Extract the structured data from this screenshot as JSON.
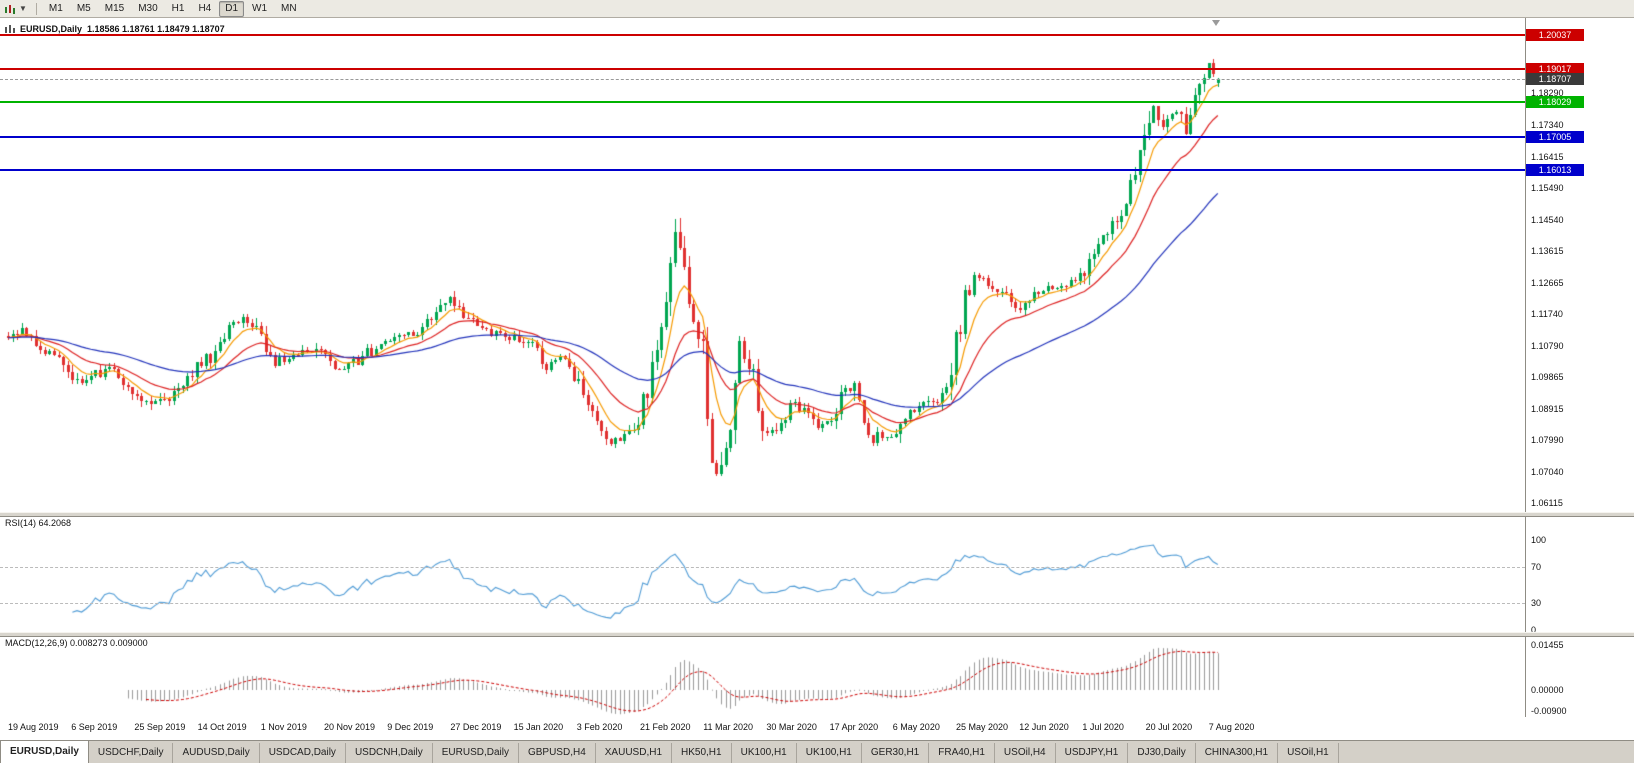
{
  "toolbar": {
    "timeframes": [
      "M1",
      "M5",
      "M15",
      "M30",
      "H1",
      "H4",
      "D1",
      "W1",
      "MN"
    ],
    "active_timeframe": "D1"
  },
  "chart": {
    "title": "EURUSD,Daily",
    "ohlc_text": "1.18586 1.18761 1.18479 1.18707",
    "open": "1.18586",
    "high": "1.18761",
    "low": "1.18479",
    "close": "1.18707",
    "price_axis_labels": [
      "1.18290",
      "1.17340",
      "1.16415",
      "1.15490",
      "1.14540",
      "1.13615",
      "1.12665",
      "1.11740",
      "1.10790",
      "1.09865",
      "1.08915",
      "1.07990",
      "1.07040",
      "1.06115"
    ],
    "levels": [
      {
        "price": "1.20037",
        "color": "#cc0000"
      },
      {
        "price": "1.19017",
        "color": "#cc0000"
      },
      {
        "price": "1.18029",
        "color": "#00b300"
      },
      {
        "price": "1.17005",
        "color": "#0000cc"
      },
      {
        "price": "1.16013",
        "color": "#0000cc"
      }
    ],
    "current_price": {
      "label": "1.18707",
      "box_color": "#3a3a3a",
      "line_color": "#999999"
    },
    "dates": [
      "19 Aug 2019",
      "6 Sep 2019",
      "25 Sep 2019",
      "14 Oct 2019",
      "1 Nov 2019",
      "20 Nov 2019",
      "9 Dec 2019",
      "27 Dec 2019",
      "15 Jan 2020",
      "3 Feb 2020",
      "21 Feb 2020",
      "11 Mar 2020",
      "30 Mar 2020",
      "17 Apr 2020",
      "6 May 2020",
      "25 May 2020",
      "12 Jun 2020",
      "1 Jul 2020",
      "20 Jul 2020",
      "7 Aug 2020"
    ]
  },
  "rsi": {
    "header": "RSI(14) 64.2068",
    "period": 14,
    "value": "64.2068",
    "axis_labels": [
      "100",
      "70",
      "30",
      "0"
    ],
    "dashed_levels": [
      70,
      30
    ],
    "line_color": "#4f9bd5"
  },
  "macd": {
    "header": "MACD(12,26,9) 0.008273 0.009000",
    "value": "0.008273",
    "signal_value": "0.009000",
    "axis_labels": [
      "0.01455",
      "0.00000",
      "-0.00900"
    ],
    "histogram_color": "#9a9a9a",
    "signal_color": "#cc0000"
  },
  "tabs": {
    "items": [
      "EURUSD,Daily",
      "USDCHF,Daily",
      "AUDUSD,Daily",
      "USDCAD,Daily",
      "USDCNH,Daily",
      "EURUSD,Daily",
      "GBPUSD,H4",
      "XAUUSD,H1",
      "HK50,H1",
      "UK100,H1",
      "UK100,H1",
      "GER30,H1",
      "FRA40,H1",
      "USOil,H4",
      "USDJPY,H1",
      "DJ30,Daily",
      "CHINA300,H1",
      "USOil,H1"
    ],
    "active_index": 0
  },
  "chart_data": {
    "type": "candlestick",
    "symbol": "EURUSD",
    "timeframe": "Daily",
    "bars": 264,
    "price_range": {
      "top": 1.2053,
      "bottom": 1.0586
    },
    "up_color": "#00a651",
    "down_color": "#e03030",
    "moving_averages": [
      {
        "name": "fast",
        "period": 7,
        "color": "#f59a00"
      },
      {
        "name": "medium",
        "period": 18,
        "color": "#dd2222"
      },
      {
        "name": "slow",
        "period": 50,
        "color": "#2233bb"
      }
    ],
    "anchors": [
      [
        0,
        1.1095
      ],
      [
        4,
        1.1125
      ],
      [
        8,
        1.106
      ],
      [
        12,
        1.1035
      ],
      [
        16,
        1.0955
      ],
      [
        19,
        1.0995
      ],
      [
        23,
        1.101
      ],
      [
        27,
        1.095
      ],
      [
        31,
        1.089
      ],
      [
        35,
        1.0935
      ],
      [
        39,
        1.099
      ],
      [
        44,
        1.105
      ],
      [
        48,
        1.1135
      ],
      [
        53,
        1.116
      ],
      [
        58,
        1.103
      ],
      [
        63,
        1.1055
      ],
      [
        67,
        1.1075
      ],
      [
        71,
        1.101
      ],
      [
        75,
        1.1025
      ],
      [
        79,
        1.1065
      ],
      [
        84,
        1.1095
      ],
      [
        89,
        1.112
      ],
      [
        94,
        1.1185
      ],
      [
        96,
        1.121
      ],
      [
        100,
        1.116
      ],
      [
        105,
        1.112
      ],
      [
        109,
        1.1105
      ],
      [
        113,
        1.109
      ],
      [
        117,
        1.102
      ],
      [
        120,
        1.106
      ],
      [
        124,
        1.0975
      ],
      [
        128,
        1.0875
      ],
      [
        131,
        1.0795
      ],
      [
        134,
        1.08
      ],
      [
        137,
        1.087
      ],
      [
        140,
        1.1
      ],
      [
        142,
        1.1135
      ],
      [
        144,
        1.132
      ],
      [
        145,
        1.144
      ],
      [
        147,
        1.128
      ],
      [
        149,
        1.118
      ],
      [
        151,
        1.106
      ],
      [
        153,
        1.072
      ],
      [
        155,
        1.07
      ],
      [
        157,
        1.081
      ],
      [
        159,
        1.108
      ],
      [
        161,
        1.104
      ],
      [
        163,
        1.092
      ],
      [
        165,
        1.08
      ],
      [
        168,
        1.086
      ],
      [
        171,
        1.0905
      ],
      [
        174,
        1.088
      ],
      [
        177,
        1.083
      ],
      [
        180,
        1.087
      ],
      [
        182,
        1.095
      ],
      [
        184,
        1.094
      ],
      [
        187,
        1.08
      ],
      [
        190,
        1.0815
      ],
      [
        193,
        1.081
      ],
      [
        196,
        1.089
      ],
      [
        199,
        1.09
      ],
      [
        202,
        1.092
      ],
      [
        205,
        1.101
      ],
      [
        208,
        1.123
      ],
      [
        211,
        1.129
      ],
      [
        214,
        1.1255
      ],
      [
        217,
        1.124
      ],
      [
        219,
        1.1185
      ],
      [
        222,
        1.1215
      ],
      [
        225,
        1.1245
      ],
      [
        228,
        1.125
      ],
      [
        231,
        1.128
      ],
      [
        234,
        1.13
      ],
      [
        237,
        1.138
      ],
      [
        240,
        1.143
      ],
      [
        243,
        1.151
      ],
      [
        246,
        1.165
      ],
      [
        249,
        1.178
      ],
      [
        251,
        1.174
      ],
      [
        254,
        1.179
      ],
      [
        256,
        1.173
      ],
      [
        258,
        1.181
      ],
      [
        260,
        1.187
      ],
      [
        261,
        1.194
      ],
      [
        262,
        1.1915
      ],
      [
        263,
        1.18707
      ]
    ]
  }
}
